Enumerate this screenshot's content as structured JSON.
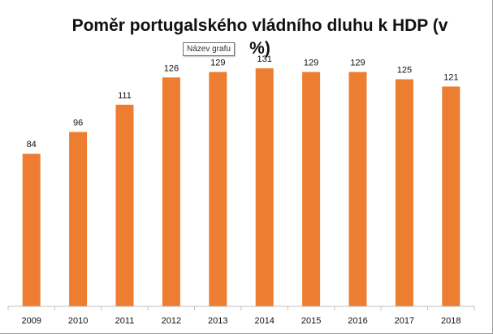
{
  "chart_data": {
    "type": "bar",
    "title": "Poměr portugalského vládního dluhu k HDP (v\n%)",
    "categories": [
      "2009",
      "2010",
      "2011",
      "2012",
      "2013",
      "2014",
      "2015",
      "2016",
      "2017",
      "2018"
    ],
    "values": [
      84,
      96,
      111,
      126,
      129,
      131,
      129,
      129,
      125,
      121
    ],
    "ylim": [
      0,
      140
    ],
    "xlabel": "",
    "ylabel": "",
    "grid": false,
    "legend": "none",
    "bar_color": "#ED7D31",
    "data_labels": true
  },
  "tooltip": {
    "text": "Název grafu"
  }
}
